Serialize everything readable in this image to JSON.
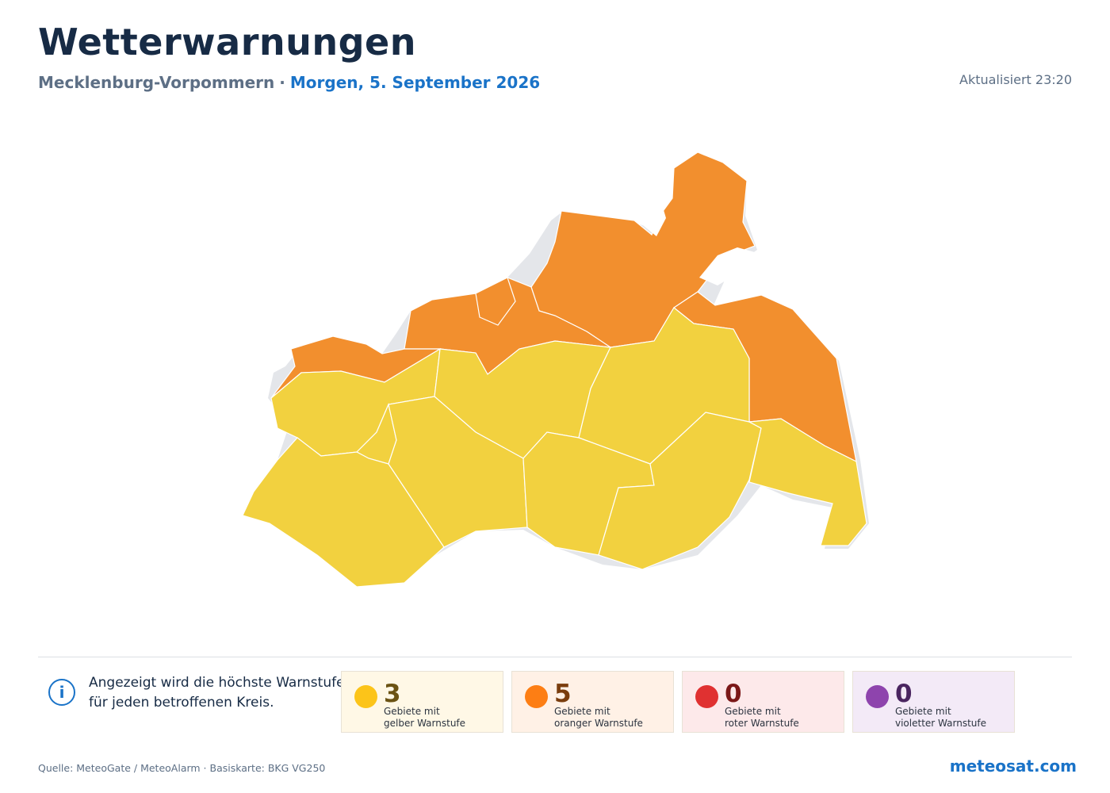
{
  "header": {
    "title": "Wetterwarnungen",
    "region": "Mecklenburg-Vorpommern",
    "separator": "·",
    "date": "Morgen, 5. September 2026",
    "updated": "Aktualisiert 23:20"
  },
  "colors": {
    "yellow": "#f2d13f",
    "orange": "#f28f2e",
    "red": "#e23b3b",
    "violet": "#8e44ad",
    "land_shadow": "#e4e6ea"
  },
  "map": {
    "districts": [
      {
        "level": "orange"
      },
      {
        "level": "orange"
      },
      {
        "level": "orange"
      },
      {
        "level": "orange"
      },
      {
        "level": "orange"
      },
      {
        "level": "yellow"
      },
      {
        "level": "yellow"
      },
      {
        "level": "yellow"
      },
      {
        "level": "yellow"
      },
      {
        "level": "yellow"
      },
      {
        "level": "yellow"
      },
      {
        "level": "yellow"
      },
      {
        "level": "yellow"
      },
      {
        "level": "yellow"
      }
    ]
  },
  "info": {
    "icon": "info-icon",
    "icon_glyph": "i",
    "text": "Angezeigt wird die höchste Warnstufe für jeden betroffenen Kreis."
  },
  "legend": [
    {
      "count": "3",
      "line1": "Gebiete mit",
      "line2": "gelber Warnstufe",
      "dot": "#fcc419",
      "bg": "#fff8e6",
      "num": "#6b5313"
    },
    {
      "count": "5",
      "line1": "Gebiete mit",
      "line2": "oranger Warnstufe",
      "dot": "#fd7e14",
      "bg": "#fff1e6",
      "num": "#7a3d0d"
    },
    {
      "count": "0",
      "line1": "Gebiete mit",
      "line2": "roter Warnstufe",
      "dot": "#e03131",
      "bg": "#fde9ea",
      "num": "#7b1818"
    },
    {
      "count": "0",
      "line1": "Gebiete mit",
      "line2": "violetter Warnstufe",
      "dot": "#8e44ad",
      "bg": "#f3eaf7",
      "num": "#4a2560"
    }
  ],
  "footer": {
    "source": "Quelle: MeteoGate / MeteoAlarm · Basiskarte: BKG VG250",
    "brand": "meteosat.com"
  }
}
